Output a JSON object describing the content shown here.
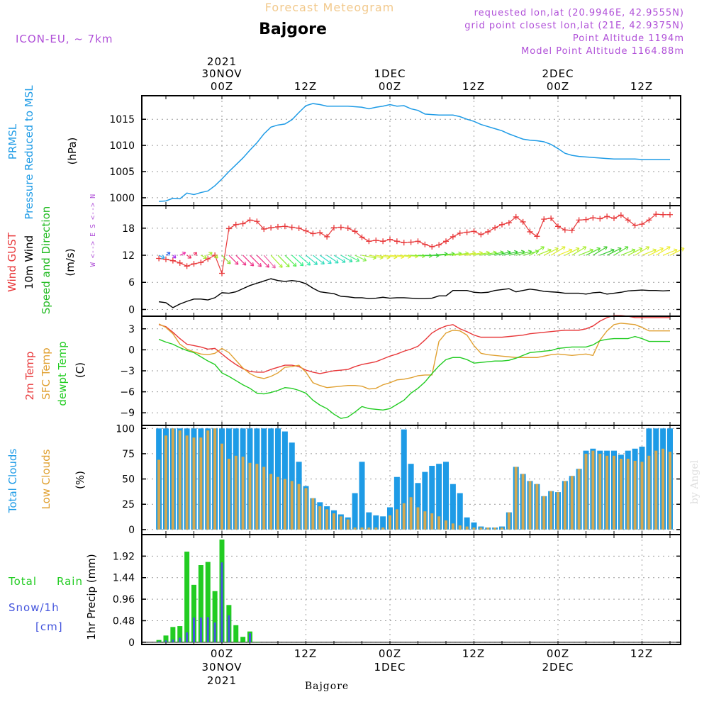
{
  "header": {
    "top_label": "Forecast Meteogram",
    "location": "Bajgore",
    "model": "ICON-EU, ~ 7km",
    "requested": "requested lon,lat (20.9946E, 42.9555N)",
    "grid_point": "grid point closest lon,lat (21E, 42.9375N)",
    "point_altitude": "Point Altitude 1194m",
    "model_altitude": "Model Point Altitude 1164.88m"
  },
  "time_axis": {
    "top_year": "2021",
    "date_labels": [
      "30NOV",
      "1DEC",
      "2DEC"
    ],
    "hour_labels": [
      "00Z",
      "12Z",
      "00Z",
      "12Z",
      "00Z",
      "12Z"
    ],
    "bottom_date": "30NOV",
    "bottom_date2": "1DEC",
    "bottom_date3": "2DEC",
    "bottom_year": "2021",
    "footer_location": "Bajgore"
  },
  "watermark": "by Angel",
  "colors": {
    "pressure": "#1e9be6",
    "gust": "#e8383a",
    "wind": "#000000",
    "temp": "#e8383a",
    "sfc_temp": "#e0a030",
    "dewpt": "#22cc22",
    "total_clouds": "#1e9be6",
    "low_clouds": "#d4a850",
    "rain": "#22cc22",
    "snow": "#4455dd",
    "purple": "#b050d8"
  },
  "chart_data": [
    {
      "id": "pressure",
      "type": "line",
      "title_lines": [
        "PRMSL",
        "Pressure Reduced to MSL"
      ],
      "ylabel": "(hPa)",
      "x_hours_from_00Z_30NOV": [
        -9,
        -8,
        -7,
        -6,
        -5,
        -4,
        -3,
        -2,
        -1,
        0,
        1,
        2,
        3,
        4,
        5,
        6,
        7,
        8,
        9,
        10,
        11,
        12,
        13,
        14,
        15,
        16,
        17,
        18,
        19,
        20,
        21,
        22,
        23,
        24,
        25,
        26,
        27,
        28,
        29,
        30,
        31,
        32,
        33,
        34,
        35,
        36,
        37,
        38,
        39,
        40,
        41,
        42,
        43,
        44,
        45,
        46,
        47,
        48,
        49,
        50,
        51,
        52,
        53,
        54,
        55,
        56,
        57,
        58,
        59,
        60,
        61,
        62,
        63,
        64
      ],
      "values": [
        999.3,
        999.4,
        999.9,
        999.8,
        1000.9,
        1000.6,
        1001.0,
        1001.3,
        1002.3,
        1003.6,
        1005.0,
        1006.3,
        1007.6,
        1009.1,
        1010.5,
        1012.2,
        1013.5,
        1013.9,
        1014.1,
        1014.9,
        1016.3,
        1017.6,
        1018.0,
        1017.8,
        1017.5,
        1017.5,
        1017.5,
        1017.5,
        1017.4,
        1017.3,
        1017.0,
        1017.3,
        1017.5,
        1017.8,
        1017.5,
        1017.6,
        1017.0,
        1016.7,
        1016.0,
        1015.9,
        1015.8,
        1015.8,
        1015.8,
        1015.5,
        1015.0,
        1014.6,
        1014.0,
        1013.6,
        1013.2,
        1012.8,
        1012.2,
        1011.7,
        1011.2,
        1011.0,
        1010.9,
        1010.7,
        1010.2,
        1009.4,
        1008.5,
        1008.1,
        1007.9,
        1007.8,
        1007.7,
        1007.6,
        1007.5,
        1007.4,
        1007.4,
        1007.4,
        1007.4,
        1007.3,
        1007.3,
        1007.3,
        1007.3,
        1007.3
      ],
      "yticks": [
        1000,
        1005,
        1010,
        1015
      ],
      "ylim": [
        998.5,
        1019.5
      ]
    },
    {
      "id": "wind",
      "type": "line",
      "title_lines": [
        "Wind GUST",
        "10m Wind",
        "Speed and Direction"
      ],
      "ylabel": "(m/s)",
      "compass_label": "W <--> E  S <--> N",
      "x_hours_from_00Z_30NOV": [
        -9,
        -8,
        -7,
        -6,
        -5,
        -4,
        -3,
        -2,
        -1,
        0,
        1,
        2,
        3,
        4,
        5,
        6,
        7,
        8,
        9,
        10,
        11,
        12,
        13,
        14,
        15,
        16,
        17,
        18,
        19,
        20,
        21,
        22,
        23,
        24,
        25,
        26,
        27,
        28,
        29,
        30,
        31,
        32,
        33,
        34,
        35,
        36,
        37,
        38,
        39,
        40,
        41,
        42,
        43,
        44,
        45,
        46,
        47,
        48,
        49,
        50,
        51,
        52,
        53,
        54,
        55,
        56,
        57,
        58,
        59,
        60,
        61,
        62,
        63,
        64
      ],
      "gust": [
        11.3,
        11.1,
        10.8,
        10.3,
        9.6,
        10.1,
        10.4,
        11.2,
        12.0,
        8.0,
        17.9,
        18.8,
        19.0,
        19.8,
        19.5,
        17.8,
        18.1,
        18.3,
        18.4,
        18.2,
        18.0,
        17.4,
        16.8,
        17.0,
        16.1,
        18.1,
        18.2,
        18.0,
        17.3,
        16.0,
        15.1,
        15.3,
        15.1,
        15.5,
        15.1,
        14.8,
        14.9,
        15.1,
        14.4,
        13.9,
        14.3,
        15.1,
        16.1,
        16.9,
        17.1,
        17.3,
        16.6,
        17.2,
        18.1,
        18.8,
        19.2,
        20.5,
        19.4,
        17.2,
        16.2,
        20.0,
        20.2,
        18.4,
        17.6,
        17.5,
        19.8,
        19.9,
        20.3,
        20.1,
        20.6,
        20.2,
        20.9,
        19.8,
        18.6,
        18.9,
        19.8,
        21.1,
        21.0,
        21.0
      ],
      "wind": [
        1.7,
        1.5,
        0.4,
        1.2,
        1.8,
        2.3,
        2.3,
        2.1,
        2.6,
        3.7,
        3.6,
        3.9,
        4.6,
        5.3,
        5.8,
        6.3,
        6.8,
        6.4,
        6.2,
        6.4,
        6.2,
        5.7,
        4.7,
        3.9,
        3.7,
        3.5,
        2.9,
        2.8,
        2.6,
        2.6,
        2.4,
        2.5,
        2.7,
        2.5,
        2.6,
        2.6,
        2.5,
        2.4,
        2.4,
        2.5,
        3.0,
        3.0,
        4.2,
        4.2,
        4.2,
        3.8,
        3.7,
        3.8,
        4.2,
        4.4,
        4.6,
        3.9,
        4.2,
        4.5,
        4.3,
        4.0,
        3.9,
        3.8,
        3.6,
        3.6,
        3.6,
        3.4,
        3.7,
        3.8,
        3.4,
        3.6,
        3.8,
        4.1,
        4.2,
        4.3,
        4.2,
        4.2,
        4.1,
        4.2
      ],
      "yticks": [
        0,
        6,
        12,
        18
      ],
      "ylim": [
        -1.5,
        23
      ]
    },
    {
      "id": "temperature",
      "type": "line",
      "title_lines": [
        "2m Temp",
        "SFC Temp",
        "dewpt Temp"
      ],
      "ylabel": "(C)",
      "x_hours_from_00Z_30NOV": [
        -9,
        -8,
        -7,
        -6,
        -5,
        -4,
        -3,
        -2,
        -1,
        0,
        1,
        2,
        3,
        4,
        5,
        6,
        7,
        8,
        9,
        10,
        11,
        12,
        13,
        14,
        15,
        16,
        17,
        18,
        19,
        20,
        21,
        22,
        23,
        24,
        25,
        26,
        27,
        28,
        29,
        30,
        31,
        32,
        33,
        34,
        35,
        36,
        37,
        38,
        39,
        40,
        41,
        42,
        43,
        44,
        45,
        46,
        47,
        48,
        49,
        50,
        51,
        52,
        53,
        54,
        55,
        56,
        57,
        58,
        59,
        60,
        61,
        62,
        63,
        64
      ],
      "temp_2m": [
        3.6,
        3.3,
        2.5,
        1.6,
        0.8,
        0.6,
        0.4,
        0.1,
        0.2,
        -0.6,
        -1.4,
        -2.1,
        -2.7,
        -3.1,
        -3.2,
        -3.2,
        -2.8,
        -2.5,
        -2.2,
        -2.2,
        -2.4,
        -2.9,
        -3.2,
        -3.4,
        -3.2,
        -3.0,
        -2.9,
        -2.8,
        -2.4,
        -2.1,
        -1.9,
        -1.7,
        -1.3,
        -0.9,
        -0.6,
        -0.2,
        0.1,
        0.5,
        1.4,
        2.4,
        3.0,
        3.4,
        3.6,
        3.0,
        2.6,
        2.1,
        1.8,
        1.8,
        1.8,
        1.8,
        1.9,
        2.0,
        2.1,
        2.3,
        2.4,
        2.5,
        2.6,
        2.7,
        2.8,
        2.8,
        2.8,
        3.0,
        3.4,
        4.1,
        4.6,
        4.9,
        4.9,
        4.8,
        4.6,
        4.6,
        4.6,
        4.6,
        4.6,
        4.6
      ],
      "sfc_temp": [
        3.7,
        3.2,
        2.3,
        0.8,
        0.1,
        -0.3,
        -0.6,
        -0.7,
        -0.5,
        0.2,
        -0.4,
        -1.5,
        -2.6,
        -3.4,
        -3.9,
        -4.1,
        -3.8,
        -3.3,
        -2.5,
        -2.4,
        -2.2,
        -3.2,
        -4.7,
        -5.1,
        -5.4,
        -5.3,
        -5.2,
        -5.1,
        -5.1,
        -5.2,
        -5.6,
        -5.5,
        -5.0,
        -4.7,
        -4.3,
        -4.2,
        -4.0,
        -3.7,
        -3.6,
        -3.6,
        1.2,
        2.4,
        2.8,
        2.7,
        2.1,
        0.6,
        -0.5,
        -0.7,
        -0.8,
        -0.9,
        -1.0,
        -1.1,
        -1.1,
        -1.1,
        -1.1,
        -0.9,
        -0.7,
        -0.6,
        -0.7,
        -0.8,
        -0.7,
        -0.6,
        -0.8,
        1.4,
        2.7,
        3.6,
        3.8,
        3.7,
        3.6,
        3.2,
        2.7,
        2.7,
        2.7,
        2.7
      ],
      "dewpt": [
        1.5,
        1.1,
        0.8,
        0.3,
        -0.1,
        -0.4,
        -1.0,
        -1.6,
        -2.1,
        -3.3,
        -3.8,
        -4.4,
        -5.0,
        -5.5,
        -6.2,
        -6.3,
        -6.1,
        -5.8,
        -5.4,
        -5.5,
        -5.8,
        -6.2,
        -7.2,
        -7.9,
        -8.4,
        -9.2,
        -9.8,
        -9.6,
        -8.9,
        -8.1,
        -8.4,
        -8.5,
        -8.6,
        -8.4,
        -7.8,
        -7.2,
        -6.2,
        -5.5,
        -4.6,
        -3.4,
        -2.3,
        -1.4,
        -1.1,
        -1.1,
        -1.4,
        -1.9,
        -1.8,
        -1.7,
        -1.6,
        -1.6,
        -1.5,
        -1.2,
        -0.8,
        -0.4,
        -0.3,
        -0.2,
        -0.1,
        0.2,
        0.3,
        0.4,
        0.4,
        0.4,
        0.7,
        1.3,
        1.5,
        1.6,
        1.6,
        1.6,
        1.9,
        1.6,
        1.2,
        1.2,
        1.2,
        1.2
      ],
      "yticks": [
        -9,
        -6,
        -3,
        0,
        3
      ],
      "ylim": [
        -10.8,
        4.8
      ]
    },
    {
      "id": "clouds",
      "type": "bar",
      "title_lines": [
        "Total Clouds",
        "Low Clouds"
      ],
      "ylabel": "(%)",
      "x_hours_from_00Z_30NOV": [
        -9,
        -8,
        -7,
        -6,
        -5,
        -4,
        -3,
        -2,
        -1,
        0,
        1,
        2,
        3,
        4,
        5,
        6,
        7,
        8,
        9,
        10,
        11,
        12,
        13,
        14,
        15,
        16,
        17,
        18,
        19,
        20,
        21,
        22,
        23,
        24,
        25,
        26,
        27,
        28,
        29,
        30,
        31,
        32,
        33,
        34,
        35,
        36,
        37,
        38,
        39,
        40,
        41,
        42,
        43,
        44,
        45,
        46,
        47,
        48,
        49,
        50,
        51,
        52,
        53,
        54,
        55,
        56,
        57,
        58,
        59,
        60,
        61,
        62,
        63,
        64
      ],
      "total": [
        100,
        100,
        100,
        100,
        100,
        100,
        100,
        100,
        100,
        100,
        100,
        100,
        100,
        100,
        100,
        100,
        100,
        100,
        97,
        86,
        67,
        43,
        31,
        27,
        23,
        19,
        15,
        12,
        36,
        67,
        17,
        14,
        13,
        22,
        52,
        99,
        65,
        46,
        57,
        63,
        65,
        67,
        45,
        36,
        12,
        7,
        3,
        2,
        2,
        3,
        17,
        62,
        55,
        48,
        45,
        33,
        38,
        37,
        48,
        53,
        60,
        78,
        80,
        78,
        78,
        78,
        74,
        78,
        80,
        82,
        100,
        100,
        100,
        100
      ],
      "low": [
        69,
        93,
        100,
        98,
        93,
        91,
        91,
        98,
        100,
        85,
        70,
        73,
        72,
        66,
        65,
        62,
        55,
        52,
        50,
        48,
        45,
        41,
        31,
        23,
        20,
        16,
        13,
        10,
        2,
        2,
        2,
        2,
        2,
        14,
        20,
        26,
        32,
        22,
        18,
        16,
        13,
        9,
        6,
        4,
        3,
        2,
        2,
        2,
        2,
        2,
        17,
        62,
        55,
        48,
        45,
        33,
        38,
        37,
        48,
        53,
        60,
        75,
        78,
        75,
        73,
        73,
        70,
        70,
        68,
        67,
        73,
        78,
        80,
        77
      ],
      "yticks": [
        0,
        25,
        50,
        75,
        100
      ],
      "ylim": [
        -5,
        103
      ]
    },
    {
      "id": "precip",
      "type": "bar",
      "title_lines": [
        "Total",
        "Rain",
        "Snow/1h",
        "[cm]"
      ],
      "ylabel": "1hr Precip (mm)",
      "x_hours_from_00Z_30NOV": [
        -9,
        -8,
        -7,
        -6,
        -5,
        -4,
        -3,
        -2,
        -1,
        0,
        1,
        2,
        3,
        4,
        5
      ],
      "rain": [
        0.05,
        0.15,
        0.34,
        0.36,
        2.02,
        1.28,
        1.72,
        1.79,
        1.14,
        2.29,
        0.83,
        0.38,
        0.12,
        0.24,
        0.01
      ],
      "snow": [
        0.02,
        0.04,
        0.06,
        0.1,
        0.22,
        0.55,
        0.55,
        0.56,
        0.44,
        1.78,
        0.6,
        0.0,
        0.0,
        0.2,
        0.0
      ],
      "yticks": [
        0,
        0.48,
        0.96,
        1.44,
        1.92
      ],
      "ylim": [
        -0.05,
        2.4
      ]
    }
  ]
}
